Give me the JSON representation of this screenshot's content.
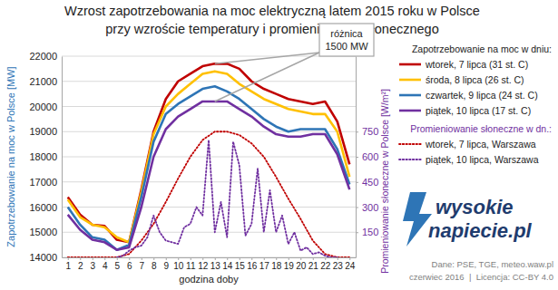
{
  "chart_data": {
    "type": "line",
    "title": [
      "Wzrost zapotrzebowania na moc elektryczną latem 2015 roku w Polsce",
      "przy wzroście temperatury i promieniowania słonecznego"
    ],
    "x_label": "godzina doby",
    "y_label": "Zapotrzebowanie na moc w Polsce [MW]",
    "y2_label": "Promieniowanie słoneczne w Polsce [W/m²]",
    "x": [
      1,
      2,
      3,
      4,
      5,
      6,
      7,
      8,
      9,
      10,
      11,
      12,
      13,
      14,
      15,
      16,
      17,
      18,
      19,
      20,
      21,
      22,
      23,
      24
    ],
    "xlim": [
      0.5,
      24.5
    ],
    "xticks": [
      1,
      2,
      3,
      4,
      5,
      6,
      7,
      8,
      9,
      10,
      11,
      12,
      13,
      14,
      15,
      16,
      17,
      18,
      19,
      20,
      21,
      22,
      23,
      24
    ],
    "ylim": [
      14000,
      22000
    ],
    "yticks": [
      14000,
      15000,
      16000,
      17000,
      18000,
      19000,
      20000,
      21000,
      22000
    ],
    "y2lim": [
      0,
      1200
    ],
    "y2ticks": [
      150,
      300,
      450,
      600,
      750
    ],
    "grid": true,
    "legend": "right",
    "legend_titles": [
      "Zapotrzebowanie na moc w dniu:",
      "Promieniowanie słoneczne w dn.:"
    ],
    "annotation": [
      "różnica",
      "1500 MW"
    ],
    "logo": [
      "wysokie",
      "napiecie.pl"
    ],
    "source": "Dane: PSE, TGE, meteo.waw.pl",
    "credit": "czerwiec 2016  |  Licencja: CC-BY 4.0",
    "series": [
      {
        "name": "wtorek, 7 lipca (31 st. C)",
        "color": "#c00000",
        "line_style": "solid",
        "values": [
          16400,
          15700,
          15300,
          15250,
          14700,
          14600,
          16700,
          19000,
          20300,
          21000,
          21300,
          21600,
          21700,
          21700,
          21500,
          21000,
          20700,
          20500,
          20300,
          20200,
          20100,
          20200,
          19400,
          17700
        ]
      },
      {
        "name": "środa, 8 lipca (26 st. C)",
        "color": "#ffc000",
        "line_style": "solid",
        "values": [
          16300,
          15600,
          15300,
          15200,
          14800,
          14600,
          16600,
          18900,
          20000,
          20500,
          20900,
          21300,
          21400,
          21300,
          20900,
          20600,
          20300,
          20100,
          19900,
          19800,
          19700,
          19700,
          19000,
          17200
        ]
      },
      {
        "name": "czwartek, 9 lipca (24 st. C)",
        "color": "#2e75b6",
        "line_style": "solid",
        "values": [
          16000,
          15300,
          14800,
          14700,
          14300,
          14500,
          16400,
          18600,
          19700,
          20100,
          20400,
          20700,
          20800,
          20600,
          20300,
          19900,
          19500,
          19200,
          19000,
          19100,
          19100,
          19100,
          18300,
          16900
        ]
      },
      {
        "name": "piątek, 10 lipca (17 st. C)",
        "color": "#7030a0",
        "line_style": "solid",
        "values": [
          15700,
          15100,
          14700,
          14600,
          14300,
          14400,
          16000,
          18000,
          19100,
          19600,
          19900,
          20200,
          20200,
          20200,
          19900,
          19600,
          19200,
          18900,
          18800,
          18800,
          18900,
          18900,
          18100,
          16700
        ]
      },
      {
        "name": "wtorek, 7 lipca, Warszawa",
        "color": "#c00000",
        "line_style": "dotted",
        "axis": "y2",
        "values": [
          0,
          0,
          0,
          0,
          0,
          20,
          100,
          200,
          330,
          470,
          600,
          700,
          750,
          750,
          730,
          680,
          600,
          480,
          350,
          230,
          100,
          20,
          0,
          0
        ]
      },
      {
        "name": "piątek, 10 lipca, Warszawa",
        "color": "#7030a0",
        "line_style": "dotted",
        "axis": "y2",
        "x": [
          5,
          5.5,
          6,
          6.5,
          7,
          7.5,
          8,
          8.5,
          9,
          9.5,
          10,
          10.5,
          11,
          11.5,
          12,
          12.5,
          13,
          13.5,
          14,
          14.5,
          15,
          15.5,
          16,
          16.5,
          17,
          17.5,
          18,
          18.5,
          19,
          19.5,
          20,
          20.5,
          21,
          21.5,
          22,
          22.5,
          23
        ],
        "values": [
          0,
          10,
          40,
          60,
          70,
          120,
          250,
          150,
          100,
          90,
          80,
          180,
          200,
          300,
          250,
          700,
          150,
          330,
          120,
          690,
          550,
          130,
          200,
          530,
          150,
          400,
          150,
          250,
          80,
          150,
          40,
          60,
          20,
          30,
          10,
          0,
          0
        ]
      }
    ]
  }
}
